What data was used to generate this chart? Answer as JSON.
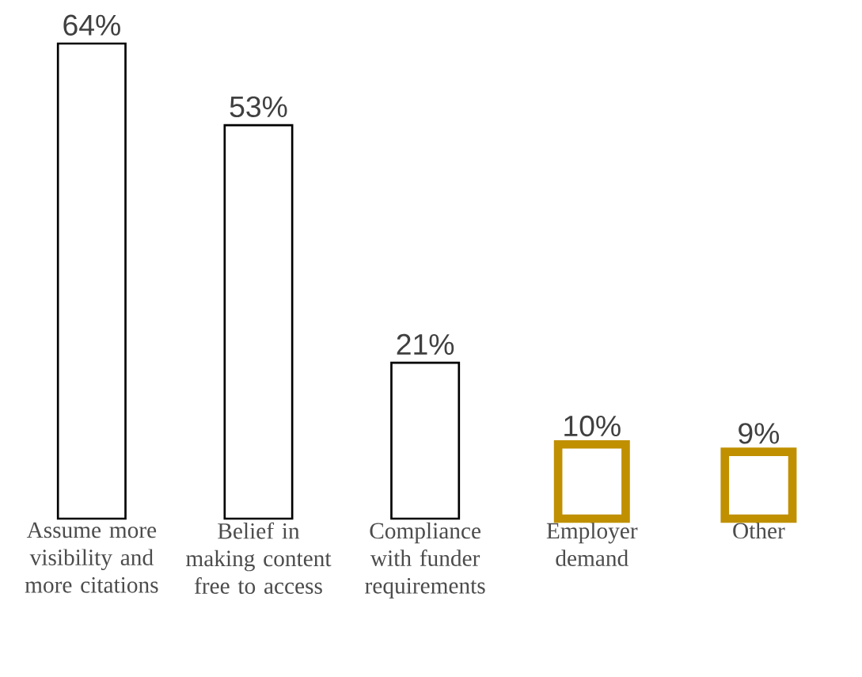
{
  "chart_data": {
    "type": "bar",
    "categories": [
      "Assume more visibility and more citations",
      "Belief in making content free to access",
      "Compliance with funder requirements",
      "Employer demand",
      "Other"
    ],
    "values": [
      64,
      53,
      21,
      10,
      9
    ],
    "value_labels": [
      "64%",
      "53%",
      "21%",
      "10%",
      "9%"
    ],
    "colors": [
      "#000000",
      "#000000",
      "#000000",
      "#c09000",
      "#c09000"
    ],
    "grid": false
  }
}
